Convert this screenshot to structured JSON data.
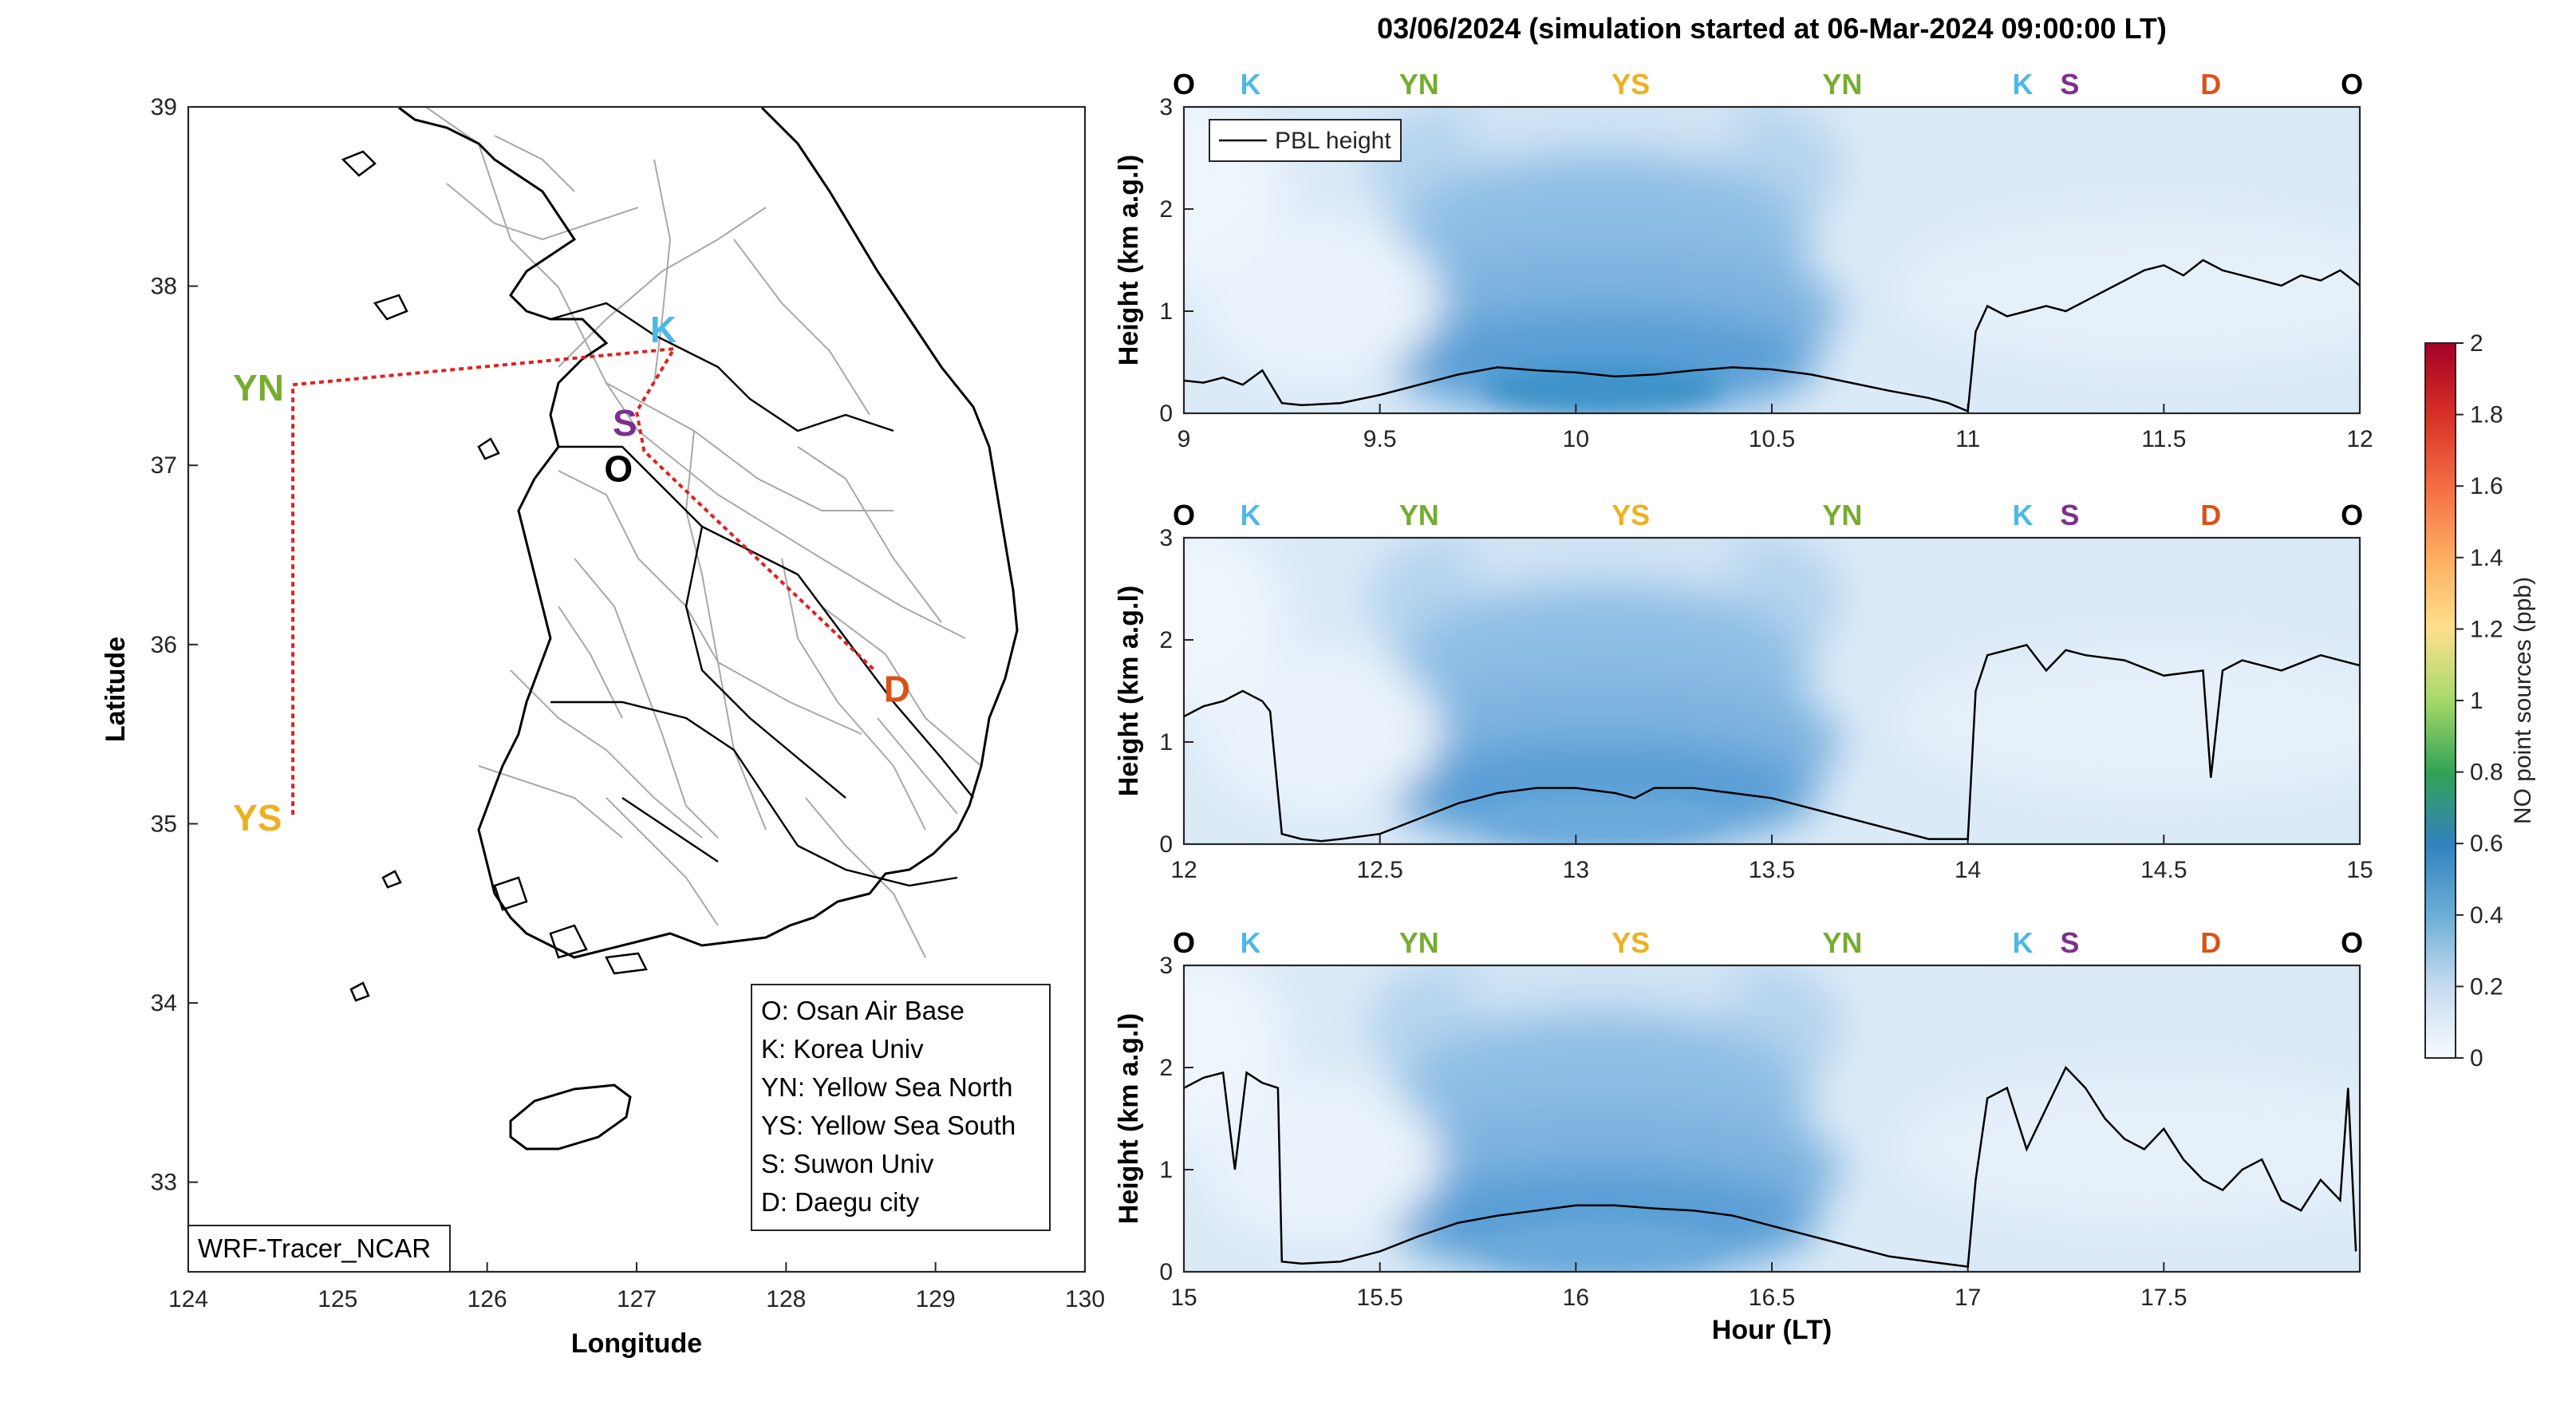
{
  "figure": {
    "title": "03/06/2024 (simulation started at 06-Mar-2024 09:00:00 LT)",
    "map_badge": "WRF-Tracer_NCAR"
  },
  "colors": {
    "O": "#000000",
    "K": "#4db8e6",
    "YN": "#77ac30",
    "YS": "#edb120",
    "S": "#7e2f8e",
    "D": "#d95319",
    "route": "#e02020"
  },
  "chart_data": [
    {
      "type": "map",
      "xlabel": "Longitude",
      "ylabel": "Latitude",
      "xlim": [
        124,
        130
      ],
      "ylim": [
        32.5,
        39
      ],
      "xticks": [
        124,
        125,
        126,
        127,
        128,
        129,
        130
      ],
      "yticks": [
        33,
        34,
        35,
        36,
        37,
        38,
        39
      ],
      "sites": [
        {
          "key": "YN",
          "label": "YN",
          "lon": 124.7,
          "lat": 37.45
        },
        {
          "key": "YS",
          "label": "YS",
          "lon": 124.7,
          "lat": 35.05
        },
        {
          "key": "K",
          "label": "K",
          "lon": 127.25,
          "lat": 37.65
        },
        {
          "key": "S",
          "label": "S",
          "lon": 127.0,
          "lat": 37.3
        },
        {
          "key": "O",
          "label": "O",
          "lon": 127.05,
          "lat": 37.08
        },
        {
          "key": "D",
          "label": "D",
          "lon": 128.6,
          "lat": 35.85
        }
      ],
      "route": [
        [
          124.7,
          35.05
        ],
        [
          124.7,
          37.45
        ],
        [
          127.25,
          37.65
        ],
        [
          127.0,
          37.3
        ],
        [
          127.05,
          37.08
        ],
        [
          128.6,
          35.85
        ]
      ],
      "legend": [
        "O: Osan Air Base",
        "K: Korea Univ",
        "YN: Yellow Sea North",
        "YS: Yellow Sea South",
        "S: Suwon Univ",
        "D: Daegu city"
      ]
    },
    {
      "type": "heatmap",
      "xlabel": "",
      "ylabel": "Height (km a.g.l)",
      "xlim": [
        9,
        12
      ],
      "ylim": [
        0,
        3
      ],
      "xticks": [
        "9",
        "9.5",
        "10",
        "10.5",
        "11",
        "11.5",
        "12"
      ],
      "yticks": [
        "0",
        "1",
        "2",
        "3"
      ],
      "site_markers": [
        {
          "label": "O",
          "x": 9.0
        },
        {
          "label": "K",
          "x": 9.17
        },
        {
          "label": "YN",
          "x": 9.6
        },
        {
          "label": "YS",
          "x": 10.14
        },
        {
          "label": "YN",
          "x": 10.68
        },
        {
          "label": "K",
          "x": 11.14
        },
        {
          "label": "S",
          "x": 11.26
        },
        {
          "label": "D",
          "x": 11.62
        },
        {
          "label": "O",
          "x": 11.98
        }
      ],
      "series": [
        {
          "name": "PBL height",
          "x": [
            9.0,
            9.05,
            9.1,
            9.15,
            9.2,
            9.25,
            9.3,
            9.4,
            9.5,
            9.6,
            9.7,
            9.8,
            9.9,
            10.0,
            10.1,
            10.2,
            10.3,
            10.4,
            10.5,
            10.6,
            10.7,
            10.8,
            10.9,
            10.95,
            11.0,
            11.02,
            11.05,
            11.1,
            11.15,
            11.2,
            11.25,
            11.3,
            11.35,
            11.4,
            11.45,
            11.5,
            11.55,
            11.6,
            11.65,
            11.7,
            11.75,
            11.8,
            11.85,
            11.9,
            11.95,
            12.0
          ],
          "y": [
            0.32,
            0.3,
            0.35,
            0.28,
            0.42,
            0.1,
            0.08,
            0.1,
            0.18,
            0.28,
            0.38,
            0.45,
            0.42,
            0.4,
            0.36,
            0.38,
            0.42,
            0.45,
            0.43,
            0.38,
            0.3,
            0.22,
            0.15,
            0.1,
            0.02,
            0.8,
            1.05,
            0.95,
            1.0,
            1.05,
            1.0,
            1.1,
            1.2,
            1.3,
            1.4,
            1.45,
            1.35,
            1.5,
            1.4,
            1.35,
            1.3,
            1.25,
            1.35,
            1.3,
            1.4,
            1.25
          ]
        }
      ],
      "legend": "top-left"
    },
    {
      "type": "heatmap",
      "xlabel": "",
      "ylabel": "Height (km a.g.l)",
      "xlim": [
        12,
        15
      ],
      "ylim": [
        0,
        3
      ],
      "xticks": [
        "12",
        "12.5",
        "13",
        "13.5",
        "14",
        "14.5",
        "15"
      ],
      "yticks": [
        "0",
        "1",
        "2",
        "3"
      ],
      "site_markers": [
        {
          "label": "O",
          "x": 12.0
        },
        {
          "label": "K",
          "x": 12.17
        },
        {
          "label": "YN",
          "x": 12.6
        },
        {
          "label": "YS",
          "x": 13.14
        },
        {
          "label": "YN",
          "x": 13.68
        },
        {
          "label": "K",
          "x": 14.14
        },
        {
          "label": "S",
          "x": 14.26
        },
        {
          "label": "D",
          "x": 14.62
        },
        {
          "label": "O",
          "x": 14.98
        }
      ],
      "series": [
        {
          "name": "PBL height",
          "x": [
            12.0,
            12.05,
            12.1,
            12.15,
            12.2,
            12.22,
            12.25,
            12.3,
            12.35,
            12.4,
            12.5,
            12.6,
            12.7,
            12.8,
            12.9,
            13.0,
            13.1,
            13.15,
            13.2,
            13.3,
            13.4,
            13.5,
            13.6,
            13.7,
            13.8,
            13.9,
            14.0,
            14.02,
            14.05,
            14.1,
            14.15,
            14.2,
            14.25,
            14.3,
            14.4,
            14.5,
            14.6,
            14.62,
            14.65,
            14.7,
            14.8,
            14.9,
            15.0
          ],
          "y": [
            1.25,
            1.35,
            1.4,
            1.5,
            1.4,
            1.3,
            0.1,
            0.05,
            0.03,
            0.05,
            0.1,
            0.25,
            0.4,
            0.5,
            0.55,
            0.55,
            0.5,
            0.45,
            0.55,
            0.55,
            0.5,
            0.45,
            0.35,
            0.25,
            0.15,
            0.05,
            0.05,
            1.5,
            1.85,
            1.9,
            1.95,
            1.7,
            1.9,
            1.85,
            1.8,
            1.65,
            1.7,
            0.65,
            1.7,
            1.8,
            1.7,
            1.85,
            1.75
          ]
        }
      ]
    },
    {
      "type": "heatmap",
      "xlabel": "Hour (LT)",
      "ylabel": "Height (km a.g.l)",
      "xlim": [
        15,
        18
      ],
      "ylim": [
        0,
        3
      ],
      "xticks": [
        "15",
        "15.5",
        "16",
        "16.5",
        "17",
        "17.5"
      ],
      "yticks": [
        "0",
        "1",
        "2",
        "3"
      ],
      "site_markers": [
        {
          "label": "O",
          "x": 15.0
        },
        {
          "label": "K",
          "x": 15.17
        },
        {
          "label": "YN",
          "x": 15.6
        },
        {
          "label": "YS",
          "x": 16.14
        },
        {
          "label": "YN",
          "x": 16.68
        },
        {
          "label": "K",
          "x": 17.14
        },
        {
          "label": "S",
          "x": 17.26
        },
        {
          "label": "D",
          "x": 17.62
        },
        {
          "label": "O",
          "x": 17.98
        }
      ],
      "series": [
        {
          "name": "PBL height",
          "x": [
            15.0,
            15.05,
            15.1,
            15.13,
            15.16,
            15.2,
            15.24,
            15.25,
            15.3,
            15.4,
            15.5,
            15.6,
            15.7,
            15.8,
            15.9,
            16.0,
            16.1,
            16.2,
            16.3,
            16.4,
            16.5,
            16.6,
            16.7,
            16.8,
            16.9,
            17.0,
            17.02,
            17.05,
            17.1,
            17.15,
            17.2,
            17.25,
            17.3,
            17.35,
            17.4,
            17.45,
            17.5,
            17.55,
            17.6,
            17.65,
            17.7,
            17.75,
            17.8,
            17.85,
            17.9,
            17.95,
            17.97,
            17.99
          ],
          "y": [
            1.8,
            1.9,
            1.95,
            1.0,
            1.95,
            1.85,
            1.8,
            0.1,
            0.08,
            0.1,
            0.2,
            0.35,
            0.48,
            0.55,
            0.6,
            0.65,
            0.65,
            0.62,
            0.6,
            0.55,
            0.45,
            0.35,
            0.25,
            0.15,
            0.1,
            0.05,
            0.9,
            1.7,
            1.8,
            1.2,
            1.6,
            2.0,
            1.8,
            1.5,
            1.3,
            1.2,
            1.4,
            1.1,
            0.9,
            0.8,
            1.0,
            1.1,
            0.7,
            0.6,
            0.9,
            0.7,
            1.8,
            0.2
          ]
        }
      ]
    }
  ],
  "colorbar": {
    "label": "NO point sources (ppb)",
    "min": 0,
    "max": 2,
    "ticks": [
      "0",
      "0.2",
      "0.4",
      "0.6",
      "0.8",
      "1",
      "1.2",
      "1.4",
      "1.6",
      "1.8",
      "2"
    ]
  }
}
